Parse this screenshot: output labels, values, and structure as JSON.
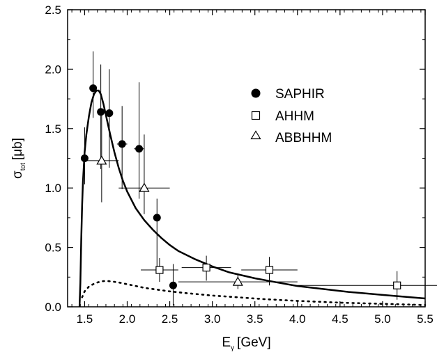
{
  "chart_data": {
    "type": "scatter",
    "title": "",
    "xlabel": {
      "main": "E",
      "sub": "γ",
      "unit": "[GeV]"
    },
    "ylabel": {
      "main": "σ",
      "sub": "tot",
      "unit": "[μb]"
    },
    "xlim": [
      1.3,
      5.5
    ],
    "ylim": [
      0.0,
      2.5
    ],
    "xticks": [
      1.5,
      2.0,
      2.5,
      3.0,
      3.5,
      4.0,
      4.5,
      5.0,
      5.5
    ],
    "xtick_labels": [
      "1.5",
      "2.0",
      "2.5",
      "3.0",
      "3.5",
      "4.0",
      "4.5",
      "5.0",
      "5.5"
    ],
    "yticks": [
      0.0,
      0.5,
      1.0,
      1.5,
      2.0,
      2.5
    ],
    "ytick_labels": [
      "0.0",
      "0.5",
      "1.0",
      "1.5",
      "2.0",
      "2.5"
    ],
    "legend_position": "upper-right",
    "series": [
      {
        "name": "SAPHIR",
        "marker": "filled-circle",
        "points": [
          {
            "x": 1.5,
            "y": 1.25,
            "xerr": 0.0,
            "yerr_lo": 0.22,
            "yerr_hi": 0.26
          },
          {
            "x": 1.6,
            "y": 1.84,
            "xerr": 0.0,
            "yerr_lo": 0.25,
            "yerr_hi": 0.31
          },
          {
            "x": 1.69,
            "y": 1.64,
            "xerr": 0.0,
            "yerr_lo": 0.48,
            "yerr_hi": 0.4
          },
          {
            "x": 1.79,
            "y": 1.63,
            "xerr": 0.0,
            "yerr_lo": 0.46,
            "yerr_hi": 0.37
          },
          {
            "x": 1.94,
            "y": 1.37,
            "xerr": 0.06,
            "yerr_lo": 0.38,
            "yerr_hi": 0.32
          },
          {
            "x": 2.14,
            "y": 1.33,
            "xerr": 0.06,
            "yerr_lo": 0.42,
            "yerr_hi": 0.56
          },
          {
            "x": 2.35,
            "y": 0.75,
            "xerr": 0.04,
            "yerr_lo": 0.44,
            "yerr_hi": 0.16
          },
          {
            "x": 2.54,
            "y": 0.18,
            "xerr": 0.0,
            "yerr_lo": 0.17,
            "yerr_hi": 0.18
          }
        ]
      },
      {
        "name": "AHHM",
        "marker": "open-square",
        "points": [
          {
            "x": 2.38,
            "y": 0.31,
            "xerr": 0.22,
            "yerr_lo": 0.1,
            "yerr_hi": 0.1
          },
          {
            "x": 2.93,
            "y": 0.33,
            "xerr": 0.29,
            "yerr_lo": 0.11,
            "yerr_hi": 0.1
          },
          {
            "x": 3.67,
            "y": 0.31,
            "xerr": 0.33,
            "yerr_lo": 0.13,
            "yerr_hi": 0.11
          },
          {
            "x": 5.17,
            "y": 0.18,
            "xerr": 1.17,
            "yerr_lo": 0.12,
            "yerr_hi": 0.12
          }
        ]
      },
      {
        "name": "ABBHHM",
        "marker": "open-triangle",
        "points": [
          {
            "x": 1.7,
            "y": 1.23,
            "xerr": 0.2,
            "yerr_lo": 0.35,
            "yerr_hi": 0.4
          },
          {
            "x": 2.2,
            "y": 1.0,
            "xerr": 0.3,
            "yerr_lo": 0.22,
            "yerr_hi": 0.45
          },
          {
            "x": 3.3,
            "y": 0.21,
            "xerr": 0.7,
            "yerr_lo": 0.06,
            "yerr_hi": 0.06
          }
        ]
      }
    ],
    "curves": [
      {
        "style": "solid",
        "x": [
          1.44,
          1.45,
          1.46,
          1.47,
          1.48,
          1.5,
          1.52,
          1.55,
          1.58,
          1.61,
          1.64,
          1.665,
          1.69,
          1.72,
          1.76,
          1.8,
          1.85,
          1.9,
          1.95,
          2.0,
          2.1,
          2.2,
          2.3,
          2.4,
          2.5,
          2.6,
          2.8,
          3.0,
          3.2,
          3.5,
          3.8,
          4.0,
          4.3,
          4.6,
          5.0,
          5.5
        ],
        "y": [
          0.0,
          0.2,
          0.55,
          0.85,
          1.05,
          1.3,
          1.45,
          1.6,
          1.72,
          1.79,
          1.82,
          1.82,
          1.79,
          1.71,
          1.58,
          1.45,
          1.3,
          1.17,
          1.06,
          0.97,
          0.83,
          0.73,
          0.65,
          0.58,
          0.52,
          0.47,
          0.4,
          0.34,
          0.29,
          0.24,
          0.2,
          0.175,
          0.15,
          0.125,
          0.1,
          0.07
        ]
      },
      {
        "style": "dotted",
        "x": [
          1.47,
          1.5,
          1.55,
          1.6,
          1.65,
          1.7,
          1.75,
          1.8,
          1.85,
          1.9,
          2.0,
          2.1,
          2.2,
          2.3,
          2.5,
          2.7,
          3.0,
          3.3,
          3.6,
          4.0,
          4.5,
          5.0,
          5.5
        ],
        "y": [
          0.08,
          0.13,
          0.17,
          0.19,
          0.205,
          0.215,
          0.218,
          0.215,
          0.21,
          0.205,
          0.19,
          0.175,
          0.16,
          0.15,
          0.13,
          0.115,
          0.095,
          0.08,
          0.065,
          0.05,
          0.035,
          0.025,
          0.015
        ]
      }
    ]
  }
}
